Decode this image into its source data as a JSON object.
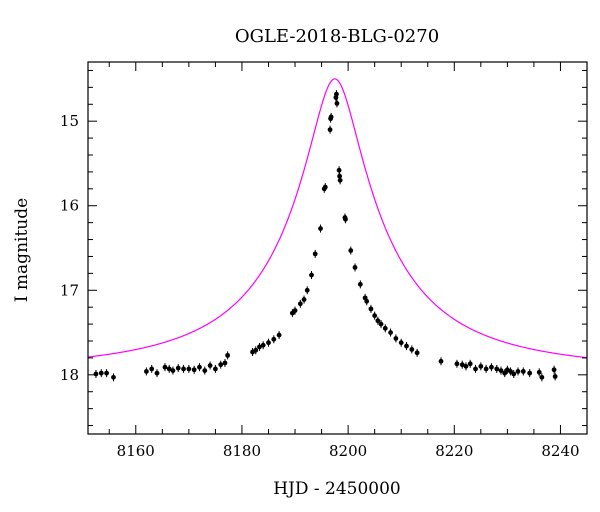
{
  "chart_data": {
    "type": "scatter",
    "title": "OGLE-2018-BLG-0270",
    "xlabel": "HJD - 2450000",
    "ylabel": "I magnitude",
    "xlim": [
      8151,
      8245
    ],
    "ylim": [
      18.7,
      14.3
    ],
    "y_inverted": true,
    "x_ticks": [
      8160,
      8180,
      8200,
      8220,
      8240
    ],
    "x_tick_labels": [
      "8160",
      "8180",
      "8200",
      "8220",
      "8240"
    ],
    "y_ticks": [
      15,
      16,
      17,
      18
    ],
    "y_tick_labels": [
      "15",
      "16",
      "17",
      "18"
    ],
    "grid": false,
    "legend": "none",
    "colors": {
      "data": "#000000",
      "model": "#ff00ff"
    },
    "model": {
      "name": "",
      "t0": 8197.5,
      "baseline_mag": 17.98,
      "peak_mag": 14.5
    },
    "series": [
      {
        "name": "",
        "points": [
          {
            "x": 8152.5,
            "y": 17.99
          },
          {
            "x": 8153.5,
            "y": 17.98
          },
          {
            "x": 8154.5,
            "y": 17.98
          },
          {
            "x": 8155.8,
            "y": 18.03
          },
          {
            "x": 8162.0,
            "y": 17.96
          },
          {
            "x": 8163.0,
            "y": 17.93
          },
          {
            "x": 8164.0,
            "y": 17.98
          },
          {
            "x": 8165.5,
            "y": 17.91
          },
          {
            "x": 8166.3,
            "y": 17.93
          },
          {
            "x": 8167.0,
            "y": 17.95
          },
          {
            "x": 8168.0,
            "y": 17.92
          },
          {
            "x": 8169.0,
            "y": 17.93
          },
          {
            "x": 8170.0,
            "y": 17.93
          },
          {
            "x": 8171.0,
            "y": 17.94
          },
          {
            "x": 8172.0,
            "y": 17.91
          },
          {
            "x": 8173.0,
            "y": 17.95
          },
          {
            "x": 8174.0,
            "y": 17.89
          },
          {
            "x": 8175.0,
            "y": 17.93
          },
          {
            "x": 8176.0,
            "y": 17.88
          },
          {
            "x": 8176.8,
            "y": 17.86
          },
          {
            "x": 8177.3,
            "y": 17.77
          },
          {
            "x": 8182.0,
            "y": 17.73
          },
          {
            "x": 8182.6,
            "y": 17.71
          },
          {
            "x": 8183.3,
            "y": 17.67
          },
          {
            "x": 8184.0,
            "y": 17.65
          },
          {
            "x": 8185.0,
            "y": 17.62
          },
          {
            "x": 8186.0,
            "y": 17.58
          },
          {
            "x": 8187.0,
            "y": 17.53
          },
          {
            "x": 8189.5,
            "y": 17.27
          },
          {
            "x": 8190.0,
            "y": 17.24
          },
          {
            "x": 8191.0,
            "y": 17.16
          },
          {
            "x": 8191.7,
            "y": 17.11
          },
          {
            "x": 8192.3,
            "y": 17.0
          },
          {
            "x": 8193.1,
            "y": 16.82
          },
          {
            "x": 8193.8,
            "y": 16.57
          },
          {
            "x": 8194.8,
            "y": 16.27
          },
          {
            "x": 8195.5,
            "y": 15.8
          },
          {
            "x": 8195.7,
            "y": 15.78
          },
          {
            "x": 8196.6,
            "y": 15.1
          },
          {
            "x": 8196.7,
            "y": 14.97
          },
          {
            "x": 8196.8,
            "y": 14.95
          },
          {
            "x": 8197.7,
            "y": 14.72
          },
          {
            "x": 8197.8,
            "y": 14.68
          },
          {
            "x": 8197.9,
            "y": 14.79
          },
          {
            "x": 8198.3,
            "y": 15.58
          },
          {
            "x": 8198.4,
            "y": 15.65
          },
          {
            "x": 8198.5,
            "y": 15.7
          },
          {
            "x": 8199.4,
            "y": 16.14
          },
          {
            "x": 8199.5,
            "y": 16.16
          },
          {
            "x": 8200.5,
            "y": 16.53
          },
          {
            "x": 8201.3,
            "y": 16.73
          },
          {
            "x": 8202.3,
            "y": 16.93
          },
          {
            "x": 8203.2,
            "y": 17.09
          },
          {
            "x": 8203.5,
            "y": 17.13
          },
          {
            "x": 8204.3,
            "y": 17.22
          },
          {
            "x": 8205.0,
            "y": 17.3
          },
          {
            "x": 8205.6,
            "y": 17.36
          },
          {
            "x": 8206.2,
            "y": 17.4
          },
          {
            "x": 8207.0,
            "y": 17.45
          },
          {
            "x": 8208.0,
            "y": 17.5
          },
          {
            "x": 8209.0,
            "y": 17.57
          },
          {
            "x": 8210.0,
            "y": 17.62
          },
          {
            "x": 8211.0,
            "y": 17.66
          },
          {
            "x": 8212.0,
            "y": 17.7
          },
          {
            "x": 8213.0,
            "y": 17.74
          },
          {
            "x": 8217.5,
            "y": 17.84
          },
          {
            "x": 8220.5,
            "y": 17.87
          },
          {
            "x": 8221.5,
            "y": 17.88
          },
          {
            "x": 8222.2,
            "y": 17.9
          },
          {
            "x": 8223.0,
            "y": 17.87
          },
          {
            "x": 8224.0,
            "y": 17.93
          },
          {
            "x": 8225.0,
            "y": 17.9
          },
          {
            "x": 8226.0,
            "y": 17.93
          },
          {
            "x": 8227.0,
            "y": 17.91
          },
          {
            "x": 8228.0,
            "y": 17.93
          },
          {
            "x": 8228.8,
            "y": 17.95
          },
          {
            "x": 8229.5,
            "y": 17.98
          },
          {
            "x": 8230.0,
            "y": 17.94
          },
          {
            "x": 8230.6,
            "y": 17.96
          },
          {
            "x": 8231.2,
            "y": 17.99
          },
          {
            "x": 8232.0,
            "y": 17.96
          },
          {
            "x": 8233.0,
            "y": 17.96
          },
          {
            "x": 8234.2,
            "y": 17.98
          },
          {
            "x": 8236.0,
            "y": 17.97
          },
          {
            "x": 8236.5,
            "y": 18.03
          },
          {
            "x": 8238.8,
            "y": 17.94
          },
          {
            "x": 8239.0,
            "y": 18.02
          }
        ]
      }
    ]
  }
}
